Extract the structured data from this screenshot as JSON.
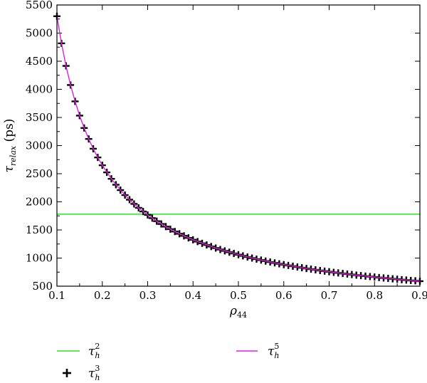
{
  "chart_data": {
    "type": "line",
    "xlabel": "ρ44",
    "xlabel_main": "ρ",
    "xlabel_sub": "44",
    "ylabel": "τrelax (ps)",
    "ylabel_main": "τ",
    "ylabel_sub": "relax",
    "ylabel_unit": " (ps)",
    "xlim": [
      0.1,
      0.9
    ],
    "ylim": [
      500,
      5500
    ],
    "xticks": [
      0.1,
      0.2,
      0.3,
      0.4,
      0.5,
      0.6,
      0.7,
      0.8,
      0.9
    ],
    "xtick_labels": [
      "0.1",
      "0.2",
      "0.3",
      "0.4",
      "0.5",
      "0.6",
      "0.7",
      "0.8",
      "0.9"
    ],
    "yticks": [
      500,
      1000,
      1500,
      2000,
      2500,
      3000,
      3500,
      4000,
      4500,
      5000,
      5500
    ],
    "ytick_labels": [
      "500",
      "1000",
      "1500",
      "2000",
      "2500",
      "3000",
      "3500",
      "4000",
      "4500",
      "5000",
      "5500"
    ],
    "grid": false,
    "legend_placement": "below",
    "series": [
      {
        "name": "τh2",
        "label_main": "τ",
        "label_sub": "h",
        "label_sup": "2",
        "style": "line",
        "color": "#33dd33",
        "x": [
          0.1,
          0.9
        ],
        "y": [
          1780,
          1780
        ]
      },
      {
        "name": "τh3",
        "label_main": "τ",
        "label_sub": "h",
        "label_sup": "3",
        "style": "plus-markers",
        "color": "#000000",
        "x": [
          0.1,
          0.11,
          0.12,
          0.13,
          0.14,
          0.15,
          0.16,
          0.17,
          0.18,
          0.19,
          0.2,
          0.21,
          0.22,
          0.23,
          0.24,
          0.25,
          0.26,
          0.27,
          0.28,
          0.29,
          0.3,
          0.31,
          0.32,
          0.33,
          0.34,
          0.35,
          0.36,
          0.37,
          0.38,
          0.39,
          0.4,
          0.41,
          0.42,
          0.43,
          0.44,
          0.45,
          0.46,
          0.47,
          0.48,
          0.49,
          0.5,
          0.51,
          0.52,
          0.53,
          0.54,
          0.55,
          0.56,
          0.57,
          0.58,
          0.59,
          0.6,
          0.61,
          0.62,
          0.63,
          0.64,
          0.65,
          0.66,
          0.67,
          0.68,
          0.69,
          0.7,
          0.71,
          0.72,
          0.73,
          0.74,
          0.75,
          0.76,
          0.77,
          0.78,
          0.79,
          0.8,
          0.81,
          0.82,
          0.83,
          0.84,
          0.85,
          0.86,
          0.87,
          0.88,
          0.89,
          0.9
        ],
        "y": [
          5300,
          4818,
          4417,
          4077,
          3786,
          3533,
          3313,
          3118,
          2944,
          2789,
          2650,
          2524,
          2409,
          2304,
          2208,
          2120,
          2038,
          1963,
          1893,
          1828,
          1767,
          1710,
          1656,
          1606,
          1559,
          1514,
          1472,
          1432,
          1395,
          1359,
          1325,
          1293,
          1262,
          1233,
          1205,
          1178,
          1152,
          1128,
          1104,
          1082,
          1060,
          1039,
          1019,
          1000,
          981,
          964,
          946,
          930,
          914,
          898,
          883,
          869,
          855,
          841,
          828,
          815,
          803,
          791,
          779,
          768,
          757,
          746,
          736,
          726,
          716,
          707,
          697,
          688,
          679,
          671,
          663,
          654,
          646,
          639,
          631,
          624,
          616,
          609,
          602,
          596,
          589
        ]
      },
      {
        "name": "τh5",
        "label_main": "τ",
        "label_sub": "h",
        "label_sup": "5",
        "style": "line",
        "color": "#e020e0",
        "x": [
          0.1,
          0.11,
          0.12,
          0.13,
          0.14,
          0.15,
          0.16,
          0.17,
          0.18,
          0.19,
          0.2,
          0.22,
          0.24,
          0.26,
          0.28,
          0.3,
          0.32,
          0.34,
          0.36,
          0.38,
          0.4,
          0.45,
          0.5,
          0.55,
          0.6,
          0.65,
          0.7,
          0.75,
          0.8,
          0.85,
          0.9
        ],
        "y": [
          5300,
          4818,
          4417,
          4077,
          3786,
          3533,
          3313,
          3118,
          2944,
          2789,
          2650,
          2409,
          2208,
          2038,
          1893,
          1767,
          1656,
          1559,
          1472,
          1395,
          1325,
          1178,
          1060,
          964,
          883,
          815,
          757,
          707,
          663,
          624,
          589
        ]
      }
    ]
  }
}
